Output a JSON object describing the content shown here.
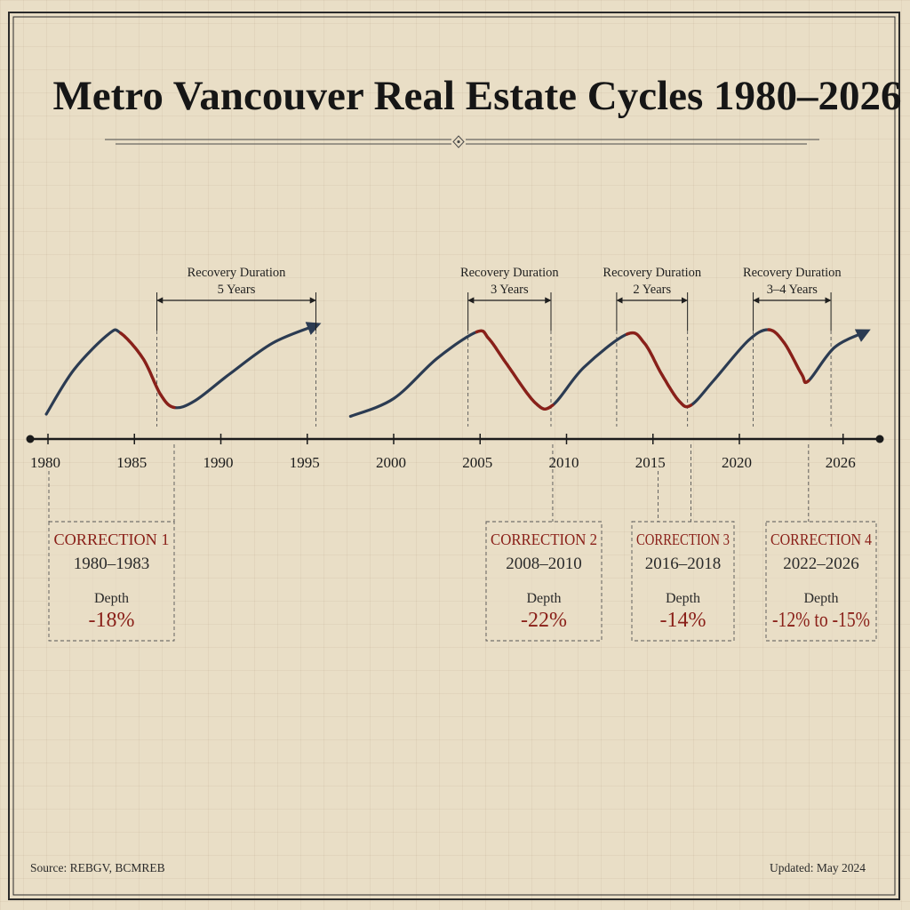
{
  "title": "Metro Vancouver Real Estate Cycles 1980–2026",
  "footer": {
    "source": "Source: REBGV, BCMREB",
    "updated": "Updated: May 2024"
  },
  "colors": {
    "rise": "#2b3b52",
    "correction": "#8a2019",
    "ink": "#1b1b1b"
  },
  "chart_data": {
    "type": "line",
    "xlabel": "",
    "ylabel": "",
    "x_ticks": [
      "1980",
      "1985",
      "1990",
      "1995",
      "2000",
      "2005",
      "2010",
      "2015",
      "2020",
      "2026"
    ],
    "series": [
      {
        "points": [
          [
            1979.9,
            12
          ],
          [
            1981.5,
            52
          ],
          [
            1983.5,
            84
          ],
          [
            1984.2,
            85
          ],
          [
            1985.5,
            62
          ],
          [
            1986.5,
            30
          ],
          [
            1987.3,
            18
          ],
          [
            1988.5,
            24
          ],
          [
            1990.5,
            48
          ],
          [
            1993,
            76
          ],
          [
            1995.5,
            92
          ]
        ]
      },
      {
        "points": [
          [
            1997.5,
            10
          ],
          [
            2000,
            26
          ],
          [
            2002.5,
            62
          ],
          [
            2004.8,
            86
          ],
          [
            2005.5,
            80
          ],
          [
            2006.5,
            58
          ],
          [
            2008.2,
            22
          ],
          [
            2009.2,
            20
          ],
          [
            2011,
            54
          ],
          [
            2013.5,
            84
          ],
          [
            2014.5,
            76
          ],
          [
            2015.5,
            48
          ],
          [
            2016.5,
            24
          ],
          [
            2017.2,
            20
          ],
          [
            2018.5,
            42
          ],
          [
            2020.5,
            78
          ],
          [
            2021.7,
            88
          ],
          [
            2022.6,
            76
          ],
          [
            2023.6,
            48
          ],
          [
            2024,
            42
          ],
          [
            2025.5,
            72
          ],
          [
            2027.3,
            86
          ]
        ]
      }
    ],
    "corrections": [
      {
        "label": "CORRECTION 1",
        "years": "1980–1983",
        "depth_label": "Depth",
        "depth": "-18%",
        "start": 1984.2,
        "end": 1987.3
      },
      {
        "label": "CORRECTION 2",
        "years": "2008–2010",
        "depth_label": "Depth",
        "depth": "-22%",
        "start": 2004.8,
        "end": 2009.2
      },
      {
        "label": "CORRECTION 3",
        "years": "2016–2018",
        "depth_label": "Depth",
        "depth": "-14%",
        "start": 2013.5,
        "end": 2017.2
      },
      {
        "label": "CORRECTION 4",
        "years": "2022–2026",
        "depth_label": "Depth",
        "depth": "-12% to -15%",
        "start": 2021.7,
        "end": 2024
      }
    ],
    "recoveries": [
      {
        "line1": "Recovery Duration",
        "line2": "5 Years",
        "start": 1986.3,
        "end": 1995.5
      },
      {
        "line1": "Recovery Duration",
        "line2": "3 Years",
        "start": 2004.3,
        "end": 2009.1
      },
      {
        "line1": "Recovery Duration",
        "line2": "2 Years",
        "start": 2012.9,
        "end": 2017.0
      },
      {
        "line1": "Recovery Duration",
        "line2": "3–4 Years",
        "start": 2020.8,
        "end": 2025.3
      }
    ]
  }
}
